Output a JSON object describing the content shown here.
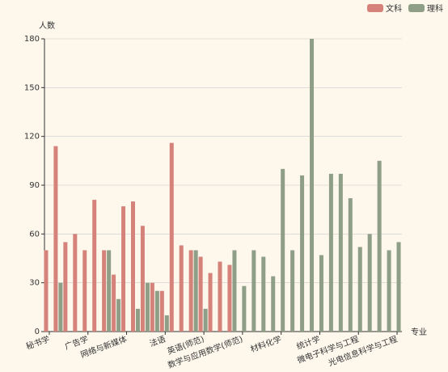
{
  "chart_data": {
    "type": "bar",
    "y_axis_label": "人数",
    "x_axis_label": "专业",
    "categories": [
      "秘书学",
      null,
      null,
      null,
      "广告学",
      null,
      null,
      null,
      "网络与新媒体",
      null,
      null,
      null,
      "法语",
      null,
      null,
      null,
      "英语(师范)",
      null,
      null,
      null,
      "数学与应用数学(师范)",
      null,
      null,
      null,
      "材料化学",
      null,
      null,
      null,
      "统计学",
      null,
      null,
      null,
      "微电子科学与工程",
      null,
      null,
      null,
      "光电信息科学与工程"
    ],
    "series": [
      {
        "name": "文科",
        "color": "#d4827a",
        "values": [
          50,
          114,
          55,
          60,
          50,
          81,
          50,
          35,
          77,
          80,
          65,
          30,
          25,
          116,
          53,
          50,
          46,
          36,
          43,
          41,
          null,
          null,
          null,
          null,
          null,
          null,
          null,
          null,
          null,
          null,
          null,
          null,
          null,
          null,
          null,
          null,
          null
        ]
      },
      {
        "name": "理科",
        "color": "#8f9e87",
        "values": [
          null,
          30,
          null,
          null,
          null,
          null,
          50,
          20,
          null,
          14,
          30,
          25,
          10,
          null,
          null,
          50,
          14,
          null,
          null,
          50,
          28,
          50,
          46,
          34,
          100,
          50,
          96,
          180,
          47,
          97,
          97,
          82,
          52,
          60,
          105,
          50,
          55
        ]
      }
    ],
    "ylim": [
      0,
      180
    ],
    "yticks": [
      0,
      30,
      60,
      90,
      120,
      150,
      180
    ],
    "grid": true,
    "legend": "top-right"
  }
}
